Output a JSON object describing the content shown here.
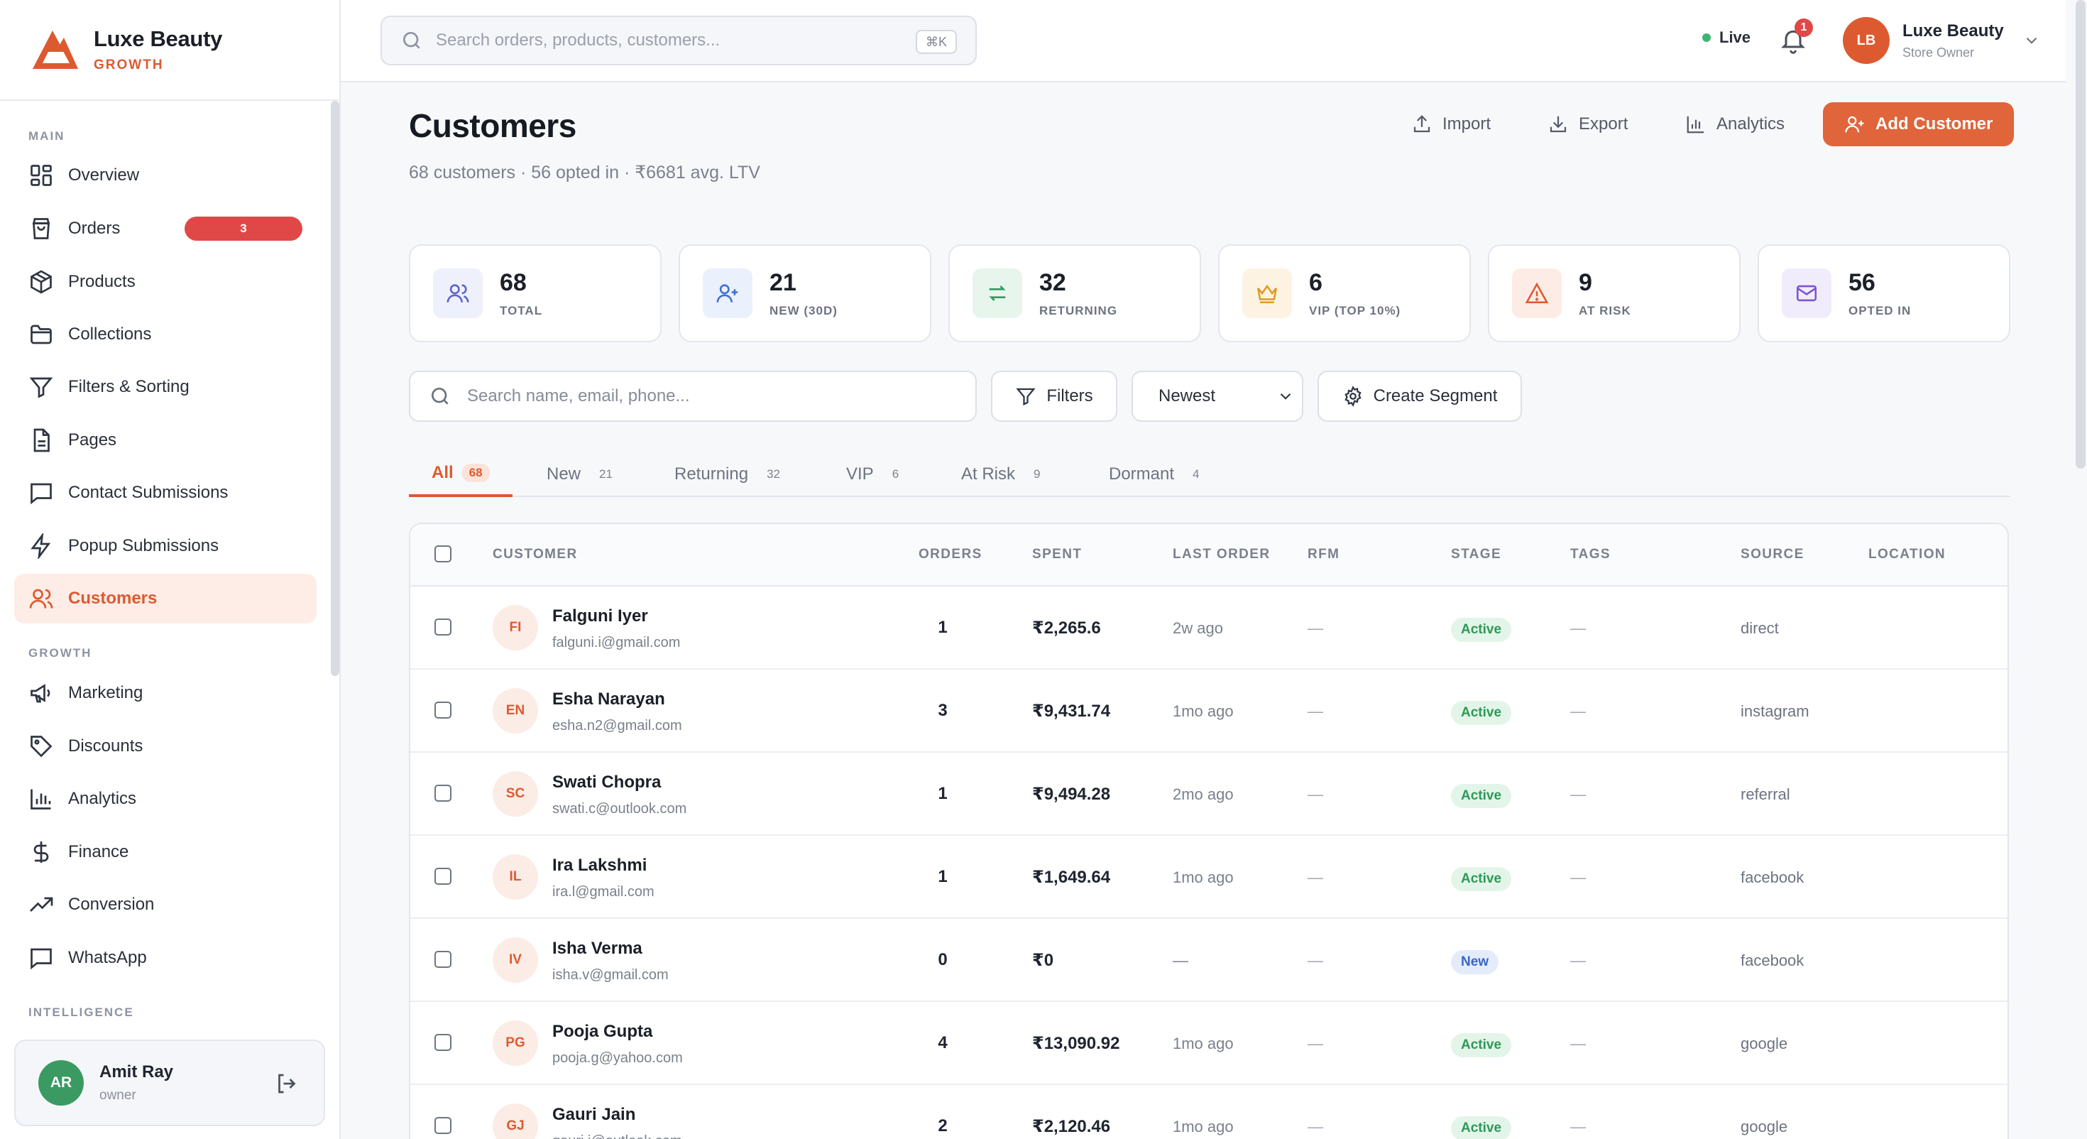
{
  "brand": {
    "name": "Luxe Beauty",
    "plan": "GROWTH"
  },
  "sidebar": {
    "sections": [
      {
        "label": "MAIN"
      },
      {
        "label": "GROWTH"
      },
      {
        "label": "INTELLIGENCE"
      }
    ],
    "items": [
      {
        "label": "Overview",
        "icon": "grid-icon"
      },
      {
        "label": "Orders",
        "icon": "shopping-bag-icon",
        "badge": "3"
      },
      {
        "label": "Products",
        "icon": "box-icon"
      },
      {
        "label": "Collections",
        "icon": "folder-icon"
      },
      {
        "label": "Filters & Sorting",
        "icon": "filter-icon"
      },
      {
        "label": "Pages",
        "icon": "file-icon"
      },
      {
        "label": "Contact Submissions",
        "icon": "message-icon"
      },
      {
        "label": "Popup Submissions",
        "icon": "zap-icon"
      },
      {
        "label": "Customers",
        "icon": "users-icon",
        "active": true
      },
      {
        "label": "Marketing",
        "icon": "megaphone-icon"
      },
      {
        "label": "Discounts",
        "icon": "tag-icon"
      },
      {
        "label": "Analytics",
        "icon": "bar-chart-icon"
      },
      {
        "label": "Finance",
        "icon": "dollar-icon"
      },
      {
        "label": "Conversion",
        "icon": "trending-up-icon"
      },
      {
        "label": "WhatsApp",
        "icon": "chat-icon"
      }
    ],
    "user": {
      "initials": "AR",
      "name": "Amit Ray",
      "role": "owner"
    }
  },
  "topbar": {
    "search_placeholder": "Search orders, products, customers...",
    "shortcut": "⌘K",
    "live_label": "Live",
    "notification_count": "1",
    "account": {
      "initials": "LB",
      "name": "Luxe Beauty",
      "role": "Store Owner"
    }
  },
  "page": {
    "title": "Customers",
    "subtitle": "68 customers · 56 opted in · ₹6681 avg. LTV",
    "actions": {
      "import": "Import",
      "export": "Export",
      "analytics": "Analytics",
      "add": "Add Customer"
    }
  },
  "stats": [
    {
      "value": "68",
      "label": "TOTAL",
      "icon": "users-icon",
      "bg": "#eef0fb",
      "color": "#5b63c9"
    },
    {
      "value": "21",
      "label": "NEW (30D)",
      "icon": "user-plus-icon",
      "bg": "#eaf0fc",
      "color": "#3f6fd1"
    },
    {
      "value": "32",
      "label": "RETURNING",
      "icon": "repeat-icon",
      "bg": "#e7f5ec",
      "color": "#2f9c5d"
    },
    {
      "value": "6",
      "label": "VIP (TOP 10%)",
      "icon": "crown-icon",
      "bg": "#fdf3e3",
      "color": "#e09a26"
    },
    {
      "value": "9",
      "label": "AT RISK",
      "icon": "alert-triangle-icon",
      "bg": "#fdece5",
      "color": "#dd5a30"
    },
    {
      "value": "56",
      "label": "OPTED IN",
      "icon": "mail-icon",
      "bg": "#f1ecfb",
      "color": "#7a54cf"
    }
  ],
  "filters": {
    "search_placeholder": "Search name, email, phone...",
    "filters_label": "Filters",
    "sort_selected": "Newest",
    "segment_label": "Create Segment"
  },
  "tabs": [
    {
      "label": "All",
      "count": "68",
      "active": true
    },
    {
      "label": "New",
      "count": "21"
    },
    {
      "label": "Returning",
      "count": "32"
    },
    {
      "label": "VIP",
      "count": "6"
    },
    {
      "label": "At Risk",
      "count": "9"
    },
    {
      "label": "Dormant",
      "count": "4"
    }
  ],
  "table": {
    "headers": {
      "customer": "CUSTOMER",
      "orders": "ORDERS",
      "spent": "SPENT",
      "last_order": "LAST ORDER",
      "rfm": "RFM",
      "stage": "STAGE",
      "tags": "TAGS",
      "source": "SOURCE",
      "location": "LOCATION"
    },
    "rows": [
      {
        "initials": "FI",
        "name": "Falguni Iyer",
        "email": "falguni.i@gmail.com",
        "orders": "1",
        "spent": "₹2,265.6",
        "last_order": "2w ago",
        "rfm": "—",
        "stage": "Active",
        "tags": "—",
        "source": "direct"
      },
      {
        "initials": "EN",
        "name": "Esha Narayan",
        "email": "esha.n2@gmail.com",
        "orders": "3",
        "spent": "₹9,431.74",
        "last_order": "1mo ago",
        "rfm": "—",
        "stage": "Active",
        "tags": "—",
        "source": "instagram"
      },
      {
        "initials": "SC",
        "name": "Swati Chopra",
        "email": "swati.c@outlook.com",
        "orders": "1",
        "spent": "₹9,494.28",
        "last_order": "2mo ago",
        "rfm": "—",
        "stage": "Active",
        "tags": "—",
        "source": "referral"
      },
      {
        "initials": "IL",
        "name": "Ira Lakshmi",
        "email": "ira.l@gmail.com",
        "orders": "1",
        "spent": "₹1,649.64",
        "last_order": "1mo ago",
        "rfm": "—",
        "stage": "Active",
        "tags": "—",
        "source": "facebook"
      },
      {
        "initials": "IV",
        "name": "Isha Verma",
        "email": "isha.v@gmail.com",
        "orders": "0",
        "spent": "₹0",
        "last_order": "—",
        "rfm": "—",
        "stage": "New",
        "tags": "—",
        "source": "facebook"
      },
      {
        "initials": "PG",
        "name": "Pooja Gupta",
        "email": "pooja.g@yahoo.com",
        "orders": "4",
        "spent": "₹13,090.92",
        "last_order": "1mo ago",
        "rfm": "—",
        "stage": "Active",
        "tags": "—",
        "source": "google"
      },
      {
        "initials": "GJ",
        "name": "Gauri Jain",
        "email": "gauri.j@outlook.com",
        "orders": "2",
        "spent": "₹2,120.46",
        "last_order": "1mo ago",
        "rfm": "—",
        "stage": "Active",
        "tags": "—",
        "source": "google"
      }
    ]
  }
}
